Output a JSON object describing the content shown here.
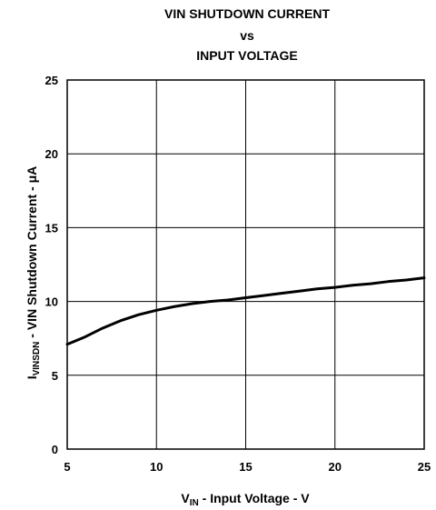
{
  "chart_data": {
    "type": "line",
    "title": [
      "VIN SHUTDOWN CURRENT",
      "vs",
      "INPUT VOLTAGE"
    ],
    "xlabel": {
      "main": "V",
      "sub": "IN",
      "rest": " - Input Voltage - V"
    },
    "ylabel": {
      "main": "I",
      "sub": "VINSDN",
      "rest": " - VIN Shutdown Current -  μA"
    },
    "xlim": [
      5,
      25
    ],
    "ylim": [
      0,
      25
    ],
    "xticks": [
      5,
      10,
      15,
      20,
      25
    ],
    "yticks": [
      0,
      5,
      10,
      15,
      20,
      25
    ],
    "grid": true,
    "series": [
      {
        "x": [
          5,
          6,
          7,
          8,
          9,
          10,
          11,
          12,
          13,
          14,
          15,
          16,
          17,
          18,
          19,
          20,
          21,
          22,
          23,
          24,
          25
        ],
        "y": [
          7.1,
          7.6,
          8.2,
          8.7,
          9.1,
          9.4,
          9.65,
          9.85,
          10.0,
          10.1,
          10.25,
          10.4,
          10.55,
          10.7,
          10.85,
          10.95,
          11.1,
          11.2,
          11.35,
          11.45,
          11.6
        ]
      }
    ],
    "colors": {
      "line": "#000000",
      "grid": "#000000",
      "frame": "#000000"
    }
  }
}
